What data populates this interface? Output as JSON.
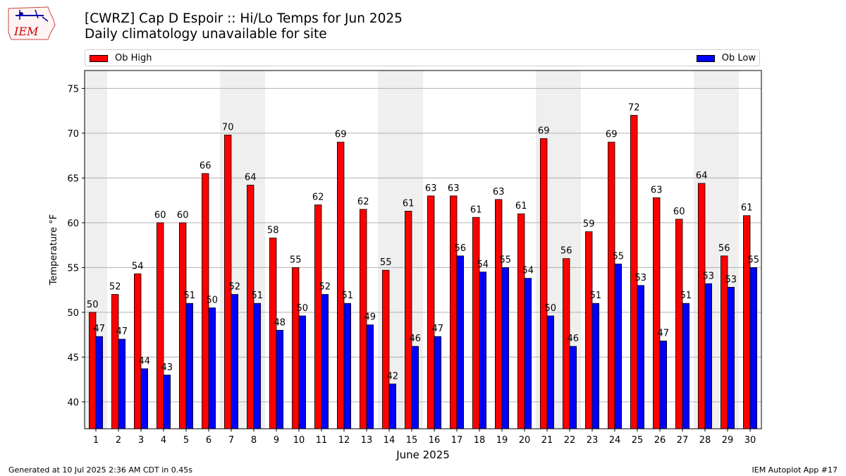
{
  "logo_text": "IEM",
  "title": "[CWRZ] Cap D Espoir :: Hi/Lo Temps for Jun 2025",
  "subtitle": "Daily climatology unavailable for site",
  "footer_left": "Generated at 10 Jul 2025 2:36 AM CDT in 0.45s",
  "footer_right": "IEM Autoplot App #17",
  "chart_data": {
    "type": "bar",
    "title": "[CWRZ] Cap D Espoir :: Hi/Lo Temps for Jun 2025",
    "subtitle": "Daily climatology unavailable for site",
    "xlabel": "June 2025",
    "ylabel": "Temperature °F",
    "ylim": [
      37,
      77
    ],
    "yticks": [
      40,
      45,
      50,
      55,
      60,
      65,
      70,
      75
    ],
    "grid": true,
    "legend_placement": "top",
    "weekend_shading": true,
    "categories": [
      "1",
      "2",
      "3",
      "4",
      "5",
      "6",
      "7",
      "8",
      "9",
      "10",
      "11",
      "12",
      "13",
      "14",
      "15",
      "16",
      "17",
      "18",
      "19",
      "20",
      "21",
      "22",
      "23",
      "24",
      "25",
      "26",
      "27",
      "28",
      "29",
      "30"
    ],
    "shaded_days": [
      1,
      7,
      8,
      14,
      15,
      21,
      22,
      28,
      29
    ],
    "series": [
      {
        "name": "Ob High",
        "color": "#ff0000",
        "values": [
          50,
          52,
          54.3,
          60,
          60,
          65.5,
          69.8,
          64.2,
          58.3,
          55,
          62,
          69,
          61.5,
          54.7,
          61.3,
          63,
          63,
          60.6,
          62.6,
          61,
          69.4,
          56,
          59,
          69,
          72,
          62.8,
          60.4,
          64.4,
          56.3,
          60.8
        ],
        "labels": [
          "50",
          "52",
          "54",
          "60",
          "60",
          "66",
          "70",
          "64",
          "58",
          "55",
          "62",
          "69",
          "62",
          "55",
          "61",
          "63",
          "63",
          "61",
          "63",
          "61",
          "69",
          "56",
          "59",
          "69",
          "72",
          "63",
          "60",
          "64",
          "56",
          "61"
        ]
      },
      {
        "name": "Ob Low",
        "color": "#0000ff",
        "values": [
          47.3,
          47,
          43.7,
          43,
          51,
          50.5,
          52,
          51,
          48,
          49.6,
          52,
          51,
          48.6,
          42,
          46.2,
          47.3,
          56.3,
          54.5,
          55,
          53.8,
          49.6,
          46.2,
          51,
          55.4,
          53,
          46.8,
          51,
          53.2,
          52.8,
          55
        ],
        "labels": [
          "47",
          "47",
          "44",
          "43",
          "51",
          "50",
          "52",
          "51",
          "48",
          "50",
          "52",
          "51",
          "49",
          "42",
          "46",
          "47",
          "56",
          "54",
          "55",
          "54",
          "50",
          "46",
          "51",
          "55",
          "53",
          "47",
          "51",
          "53",
          "53",
          "55"
        ]
      }
    ]
  }
}
